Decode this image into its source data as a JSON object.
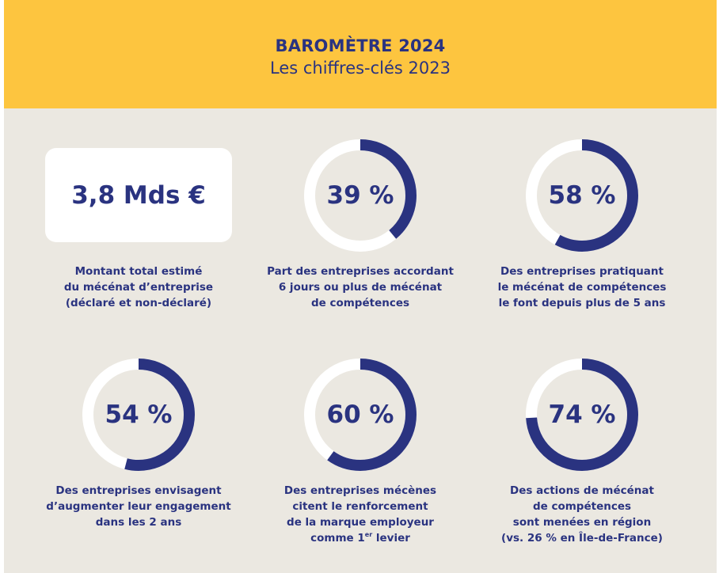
{
  "header": {
    "title": "BAROMÈTRE 2024",
    "subtitle": "Les chiffres-clés 2023"
  },
  "colors": {
    "header_bg": "#fdc53f",
    "page_bg": "#ebe8e1",
    "accent": "#2a3380",
    "ring_track": "#ffffff"
  },
  "stats": [
    {
      "value": "3,8 Mds €",
      "caption": [
        "Montant total estimé",
        "du mécénat d’entreprise",
        "(déclaré et non-déclaré)"
      ]
    },
    {
      "value": "39 %",
      "percent": 39,
      "caption": [
        "Part des entreprises accordant",
        "6 jours ou plus de mécénat",
        "de compétences"
      ]
    },
    {
      "value": "58 %",
      "percent": 58,
      "caption": [
        "Des entreprises pratiquant",
        "le mécénat de compétences",
        "le font depuis plus de 5 ans"
      ]
    },
    {
      "value": "54 %",
      "percent": 54,
      "caption": [
        "Des entreprises envisagent",
        "d’augmenter leur engagement",
        "dans les 2 ans"
      ]
    },
    {
      "value": "60 %",
      "percent": 60,
      "caption": [
        "Des entreprises mécènes",
        "citent le renforcement",
        "de la marque employeur",
        "comme 1",
        "er",
        " levier"
      ]
    },
    {
      "value": "74 %",
      "percent": 74,
      "caption": [
        "Des actions de mécénat",
        "de compétences",
        "sont menées en région",
        "(vs. 26 % en Île-de-France)"
      ]
    }
  ]
}
